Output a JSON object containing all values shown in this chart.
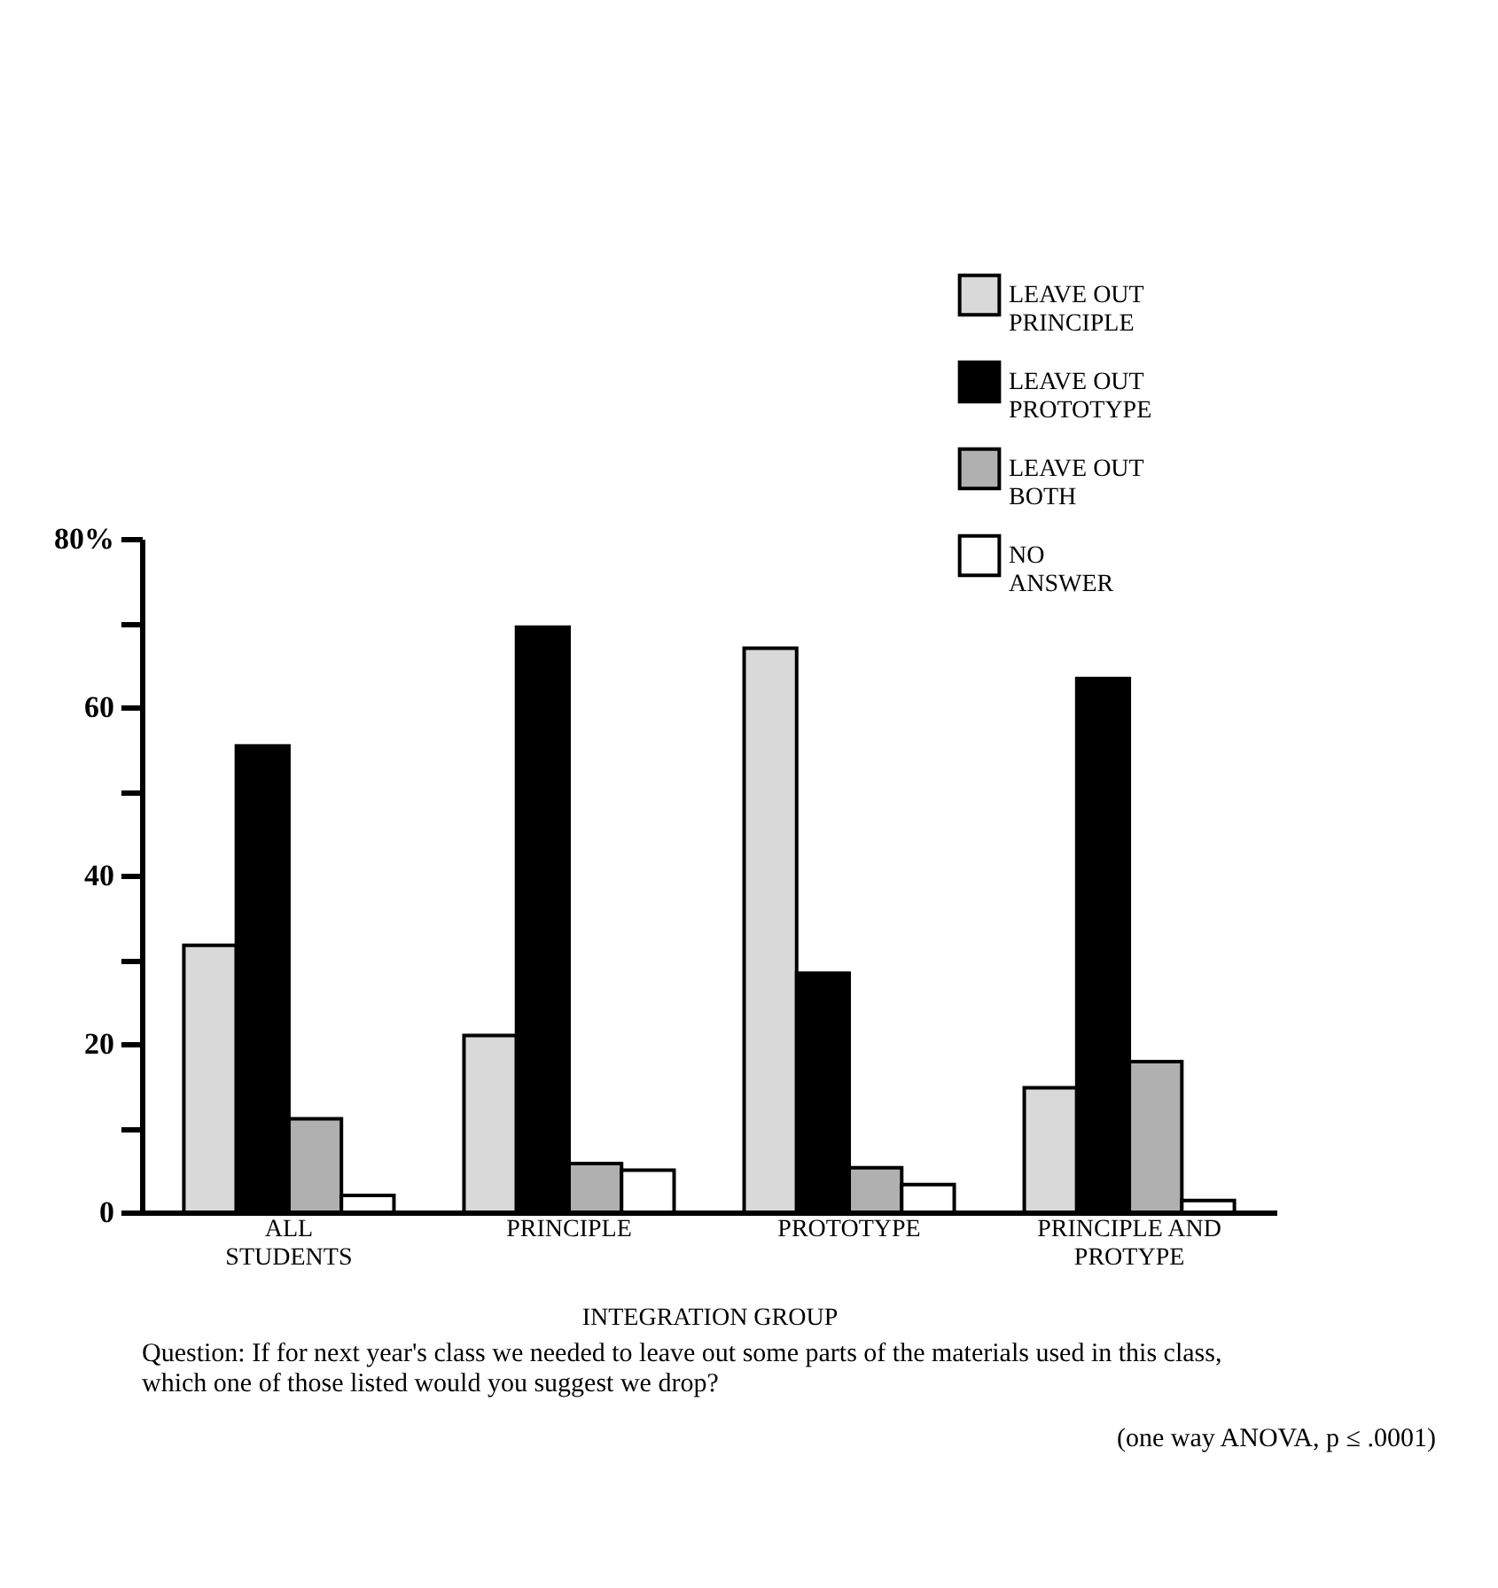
{
  "chart_data": {
    "type": "bar",
    "xlabel": "INTEGRATION GROUP",
    "categories": [
      "ALL STUDENTS",
      "PRINCIPLE",
      "PROTOTYPE",
      "PRINCIPLE  AND PROTYPE"
    ],
    "series": [
      {
        "name": "LEAVE OUT PRINCIPLE",
        "color": "#d9d9d9",
        "values": [
          31.7,
          21,
          67,
          14.8
        ]
      },
      {
        "name": "LEAVE OUT PROTOTYPE",
        "color": "#000000",
        "values": [
          55.4,
          69.5,
          28.4,
          63.4
        ]
      },
      {
        "name": "LEAVE OUT BOTH",
        "color": "#b0b0b0",
        "values": [
          11.1,
          5.8,
          5.3,
          17.9
        ]
      },
      {
        "name": "NO ANSWER",
        "color": "#ffffff",
        "values": [
          2,
          5,
          3.3,
          1.4
        ]
      }
    ],
    "ylim": [
      0,
      80
    ],
    "yticks": [
      0,
      {
        "value": 10,
        "label": null
      },
      20,
      {
        "value": 30,
        "label": null
      },
      40,
      {
        "value": 50,
        "label": null
      },
      60,
      {
        "value": 70,
        "label": null
      },
      {
        "value": 80,
        "label": "80%"
      }
    ],
    "grid": false,
    "legend": "top right",
    "annotations": [
      "Question: If for next year's class we needed to leave out some parts of the materials used in this class, which one of those listed would you suggest we drop?",
      "(one way ANOVA, p ≤ .0001)"
    ]
  }
}
